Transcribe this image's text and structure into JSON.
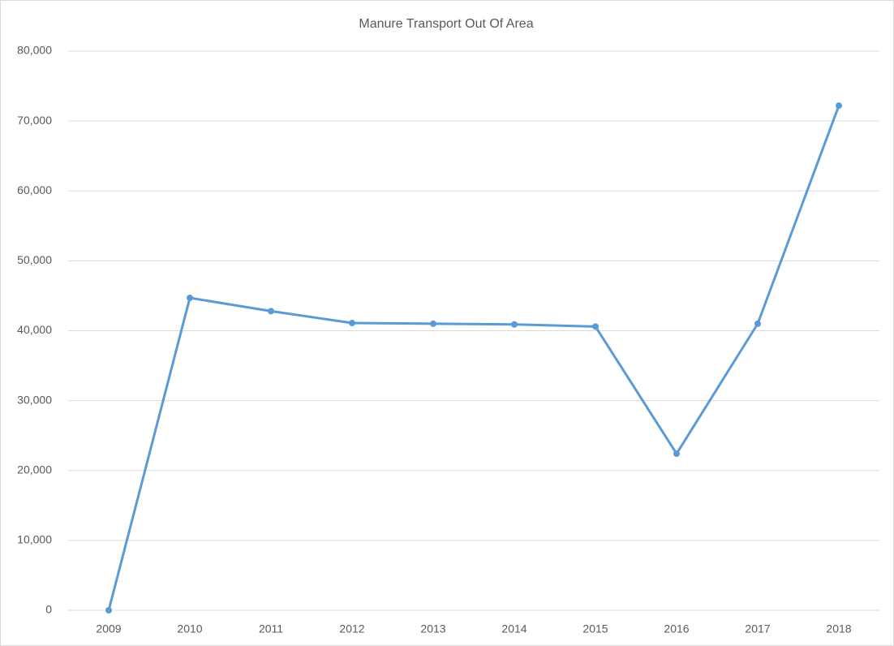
{
  "chart_data": {
    "type": "line",
    "title": "Manure Transport Out Of Area",
    "categories": [
      "2009",
      "2010",
      "2011",
      "2012",
      "2013",
      "2014",
      "2015",
      "2016",
      "2017",
      "2018"
    ],
    "series": [
      {
        "name": "Manure Transport Out Of Area",
        "color": "#5b9bd5",
        "values": [
          0,
          44700,
          42800,
          41100,
          41000,
          40900,
          40600,
          22400,
          41000,
          72200
        ]
      }
    ],
    "ylim": [
      0,
      80000
    ],
    "yticks": [
      0,
      {
        "value": 10000,
        "label": "10,000"
      },
      {
        "value": 20000,
        "label": "20,000"
      },
      {
        "value": 30000,
        "label": "30,000"
      },
      {
        "value": 40000,
        "label": "40,000"
      },
      {
        "value": 50000,
        "label": "50,000"
      },
      {
        "value": 60000,
        "label": "60,000"
      },
      {
        "value": 70000,
        "label": "70,000"
      },
      {
        "value": 80000,
        "label": "80,000"
      }
    ],
    "grid": true
  }
}
